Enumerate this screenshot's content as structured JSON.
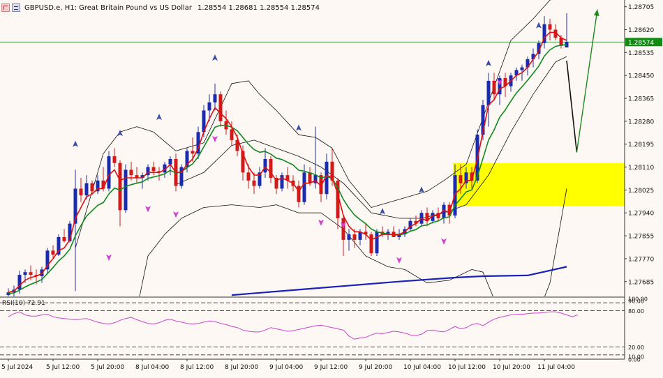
{
  "header": {
    "symbol_line": "GBPUSD.e, H1:  Great Britain Pound vs US Dollar",
    "ohlc": "1.28554 1.28681 1.28554 1.28574"
  },
  "colors": {
    "background": "#fdf8f3",
    "bull_candle": "#1a2bb0",
    "bear_candle": "#d11a1a",
    "fast_ma": "#e01010",
    "slow_ma": "#0f8a1e",
    "long_ma": "#1a22b8",
    "bollinger": "#111111",
    "zone": "#ffff00",
    "rsi_line": "#cc44cc",
    "current_price_line": "#138a13",
    "arrow_up": "#1d8a1d",
    "arrow_down": "#111111",
    "fractal_up": "#3a4fa8",
    "fractal_down": "#d43fd4"
  },
  "price_axis": {
    "ticks": [
      "1.28705",
      "1.28620",
      "1.28535",
      "1.28450",
      "1.28365",
      "1.28280",
      "1.28195",
      "1.28110",
      "1.28025",
      "1.27940",
      "1.27855",
      "1.27770",
      "1.27685"
    ],
    "current_price": "1.28574"
  },
  "time_axis": {
    "labels": [
      "5 Jul 2024",
      "5 Jul 12:00",
      "5 Jul 20:00",
      "8 Jul 04:00",
      "8 Jul 12:00",
      "8 Jul 20:00",
      "9 Jul 04:00",
      "9 Jul 12:00",
      "9 Jul 20:00",
      "10 Jul 04:00",
      "10 Jul 12:00",
      "10 Jul 20:00",
      "11 Jul 04:00"
    ]
  },
  "rsi": {
    "label": "RSI(10) 72.91",
    "ticks": [
      "100.00",
      "80.00",
      "20.00",
      "0.00"
    ],
    "top_cut": "90.00",
    "bottom_cut": "10.00"
  },
  "chart_data": {
    "type": "candlestick",
    "price_range": [
      1.2763,
      1.2873
    ],
    "current_price": 1.28574,
    "forecast_zone": [
      1.27965,
      1.28125
    ],
    "candles": [
      [
        1.27635,
        1.2766,
        1.2762,
        1.27645
      ],
      [
        1.27645,
        1.2767,
        1.2763,
        1.27655
      ],
      [
        1.27655,
        1.27725,
        1.2764,
        1.2771
      ],
      [
        1.2771,
        1.2773,
        1.2768,
        1.2772
      ],
      [
        1.2772,
        1.27745,
        1.2769,
        1.2771
      ],
      [
        1.2771,
        1.2773,
        1.27675,
        1.27705
      ],
      [
        1.27705,
        1.2774,
        1.2768,
        1.2773
      ],
      [
        1.2773,
        1.2781,
        1.27715,
        1.278
      ],
      [
        1.278,
        1.2782,
        1.2777,
        1.27785
      ],
      [
        1.27785,
        1.2786,
        1.2778,
        1.2785
      ],
      [
        1.2785,
        1.2788,
        1.2783,
        1.27835
      ],
      [
        1.27835,
        1.2791,
        1.2783,
        1.279
      ],
      [
        1.279,
        1.281,
        1.2765,
        1.2803
      ],
      [
        1.2803,
        1.2807,
        1.2798,
        1.28005
      ],
      [
        1.28005,
        1.2808,
        1.2799,
        1.2805
      ],
      [
        1.2805,
        1.2806,
        1.2801,
        1.2802
      ],
      [
        1.2802,
        1.2808,
        1.2801,
        1.2806
      ],
      [
        1.2806,
        1.2811,
        1.2802,
        1.2803
      ],
      [
        1.2803,
        1.2817,
        1.2802,
        1.2815
      ],
      [
        1.2815,
        1.2818,
        1.2811,
        1.28125
      ],
      [
        1.28125,
        1.28135,
        1.2789,
        1.2795
      ],
      [
        1.2795,
        1.2812,
        1.2794,
        1.281
      ],
      [
        1.281,
        1.2813,
        1.2806,
        1.2808
      ],
      [
        1.2808,
        1.2811,
        1.2805,
        1.2807
      ],
      [
        1.2807,
        1.2809,
        1.2803,
        1.2808
      ],
      [
        1.2808,
        1.2812,
        1.2806,
        1.2811
      ],
      [
        1.2811,
        1.2813,
        1.2808,
        1.28095
      ],
      [
        1.28095,
        1.2811,
        1.2806,
        1.2809
      ],
      [
        1.2809,
        1.2813,
        1.2807,
        1.2812
      ],
      [
        1.2812,
        1.2815,
        1.2808,
        1.2814
      ],
      [
        1.2814,
        1.2816,
        1.2802,
        1.2804
      ],
      [
        1.2804,
        1.2812,
        1.2803,
        1.2811
      ],
      [
        1.2811,
        1.2818,
        1.2809,
        1.2817
      ],
      [
        1.2817,
        1.2822,
        1.2813,
        1.2816
      ],
      [
        1.2816,
        1.2826,
        1.2814,
        1.2824
      ],
      [
        1.2824,
        1.2834,
        1.2822,
        1.2832
      ],
      [
        1.2832,
        1.2838,
        1.2828,
        1.2835
      ],
      [
        1.2835,
        1.2842,
        1.2832,
        1.2838
      ],
      [
        1.2838,
        1.2839,
        1.2826,
        1.2828
      ],
      [
        1.2828,
        1.2832,
        1.2823,
        1.2825
      ],
      [
        1.2825,
        1.2828,
        1.2819,
        1.2821
      ],
      [
        1.2821,
        1.2823,
        1.2815,
        1.2817
      ],
      [
        1.2817,
        1.2819,
        1.2806,
        1.2809
      ],
      [
        1.2809,
        1.2812,
        1.2803,
        1.2806
      ],
      [
        1.2806,
        1.2809,
        1.2801,
        1.2804
      ],
      [
        1.2804,
        1.2811,
        1.2803,
        1.2809
      ],
      [
        1.2809,
        1.2818,
        1.2807,
        1.2814
      ],
      [
        1.2814,
        1.2815,
        1.2805,
        1.2807
      ],
      [
        1.2807,
        1.2808,
        1.2801,
        1.2803
      ],
      [
        1.2803,
        1.2809,
        1.2802,
        1.2808
      ],
      [
        1.2808,
        1.2811,
        1.2803,
        1.2806
      ],
      [
        1.2806,
        1.2808,
        1.2802,
        1.2804
      ],
      [
        1.2804,
        1.2806,
        1.2796,
        1.2798
      ],
      [
        1.2798,
        1.2812,
        1.2797,
        1.2809
      ],
      [
        1.2809,
        1.2811,
        1.2804,
        1.2805
      ],
      [
        1.2805,
        1.2826,
        1.2803,
        1.2808
      ],
      [
        1.2808,
        1.2809,
        1.2798,
        1.2801
      ],
      [
        1.2801,
        1.2816,
        1.2799,
        1.2813
      ],
      [
        1.2813,
        1.2818,
        1.2804,
        1.2806
      ],
      [
        1.2806,
        1.2807,
        1.2788,
        1.2792
      ],
      [
        1.2792,
        1.2793,
        1.2778,
        1.2784
      ],
      [
        1.2784,
        1.2788,
        1.278,
        1.2786
      ],
      [
        1.2786,
        1.2788,
        1.2781,
        1.2784
      ],
      [
        1.2784,
        1.2788,
        1.2782,
        1.2787
      ],
      [
        1.2787,
        1.279,
        1.2784,
        1.2786
      ],
      [
        1.2786,
        1.2787,
        1.2778,
        1.2779
      ],
      [
        1.2779,
        1.2788,
        1.2778,
        1.2787
      ],
      [
        1.2787,
        1.2789,
        1.2785,
        1.2786
      ],
      [
        1.2786,
        1.2788,
        1.2784,
        1.2787
      ],
      [
        1.2787,
        1.2789,
        1.2785,
        1.2785
      ],
      [
        1.2785,
        1.2788,
        1.2784,
        1.2786
      ],
      [
        1.2786,
        1.2789,
        1.2785,
        1.2788
      ],
      [
        1.2788,
        1.2792,
        1.2787,
        1.2791
      ],
      [
        1.2791,
        1.2793,
        1.2789,
        1.279
      ],
      [
        1.279,
        1.2795,
        1.2789,
        1.2794
      ],
      [
        1.2794,
        1.2796,
        1.2789,
        1.2791
      ],
      [
        1.2791,
        1.2795,
        1.279,
        1.2794
      ],
      [
        1.2794,
        1.2796,
        1.2791,
        1.2792
      ],
      [
        1.2792,
        1.2798,
        1.279,
        1.2797
      ],
      [
        1.2797,
        1.2798,
        1.279,
        1.2793
      ],
      [
        1.2793,
        1.2812,
        1.2792,
        1.2808
      ],
      [
        1.2808,
        1.2812,
        1.2801,
        1.2805
      ],
      [
        1.2805,
        1.2811,
        1.2803,
        1.2809
      ],
      [
        1.2809,
        1.2811,
        1.2803,
        1.2806
      ],
      [
        1.2806,
        1.2825,
        1.2805,
        1.2823
      ],
      [
        1.2823,
        1.2836,
        1.2821,
        1.2834
      ],
      [
        1.2834,
        1.2846,
        1.2826,
        1.2843
      ],
      [
        1.2843,
        1.2846,
        1.2836,
        1.2838
      ],
      [
        1.2838,
        1.2845,
        1.2834,
        1.2844
      ],
      [
        1.2844,
        1.2846,
        1.2837,
        1.2841
      ],
      [
        1.2841,
        1.2846,
        1.2839,
        1.2845
      ],
      [
        1.2845,
        1.2848,
        1.2843,
        1.2847
      ],
      [
        1.2847,
        1.2849,
        1.2843,
        1.2848
      ],
      [
        1.2848,
        1.2852,
        1.2845,
        1.2851
      ],
      [
        1.2851,
        1.2855,
        1.2848,
        1.2853
      ],
      [
        1.2853,
        1.2858,
        1.2851,
        1.2857
      ],
      [
        1.2857,
        1.2867,
        1.2855,
        1.2864
      ],
      [
        1.2864,
        1.2866,
        1.2858,
        1.2862
      ],
      [
        1.2862,
        1.2864,
        1.2858,
        1.2859
      ],
      [
        1.2859,
        1.286,
        1.2855,
        1.2856
      ],
      [
        1.28554,
        1.28681,
        1.28554,
        1.28574
      ]
    ],
    "fast_ma": [
      1.27645,
      1.2765,
      1.2767,
      1.2769,
      1.277,
      1.27705,
      1.27715,
      1.27745,
      1.2777,
      1.278,
      1.2781,
      1.2784,
      1.2792,
      1.2796,
      1.28,
      1.2801,
      1.2803,
      1.2803,
      1.2808,
      1.281,
      1.2806,
      1.2807,
      1.2807,
      1.2807,
      1.2807,
      1.2809,
      1.2809,
      1.2809,
      1.281,
      1.2812,
      1.2809,
      1.2809,
      1.2812,
      1.2814,
      1.2818,
      1.2824,
      1.2829,
      1.2833,
      1.2831,
      1.2829,
      1.2826,
      1.2822,
      1.2816,
      1.2811,
      1.2808,
      1.2808,
      1.2811,
      1.2809,
      1.2806,
      1.2807,
      1.2806,
      1.2805,
      1.2802,
      1.2805,
      1.2805,
      1.2806,
      1.2804,
      1.2808,
      1.2807,
      1.2801,
      1.2793,
      1.2789,
      1.2787,
      1.2787,
      1.2786,
      1.2784,
      1.2785,
      1.2786,
      1.2786,
      1.2786,
      1.2786,
      1.2787,
      1.2789,
      1.279,
      1.2792,
      1.2791,
      1.2793,
      1.2793,
      1.2795,
      1.2794,
      1.2801,
      1.2803,
      1.2806,
      1.2806,
      1.2814,
      1.2824,
      1.2834,
      1.2836,
      1.284,
      1.2841,
      1.2843,
      1.2845,
      1.2846,
      1.2848,
      1.2851,
      1.2854,
      1.2859,
      1.2861,
      1.2861,
      1.2859,
      1.2858
    ],
    "slow_ma": [
      1.2764,
      1.27643,
      1.27653,
      1.27665,
      1.27675,
      1.27683,
      1.27693,
      1.27715,
      1.27737,
      1.27762,
      1.2778,
      1.27805,
      1.27855,
      1.27893,
      1.27928,
      1.27948,
      1.27968,
      1.27978,
      1.2801,
      1.28032,
      1.28025,
      1.28038,
      1.28045,
      1.2805,
      1.28055,
      1.28068,
      1.28073,
      1.28078,
      1.28085,
      1.28098,
      1.28088,
      1.28092,
      1.28108,
      1.28122,
      1.28148,
      1.28185,
      1.28222,
      1.28258,
      1.28265,
      1.28265,
      1.28258,
      1.28245,
      1.2822,
      1.28195,
      1.28175,
      1.28165,
      1.28168,
      1.28158,
      1.28143,
      1.28138,
      1.28128,
      1.28118,
      1.28098,
      1.28095,
      1.28088,
      1.28082,
      1.2807,
      1.28075,
      1.28068,
      1.28033,
      1.2799,
      1.27958,
      1.27932,
      1.27915,
      1.279,
      1.2788,
      1.2787,
      1.27865,
      1.27862,
      1.27858,
      1.27858,
      1.27862,
      1.27872,
      1.27878,
      1.27892,
      1.27895,
      1.27905,
      1.2791,
      1.27922,
      1.27925,
      1.27968,
      1.27993,
      1.28018,
      1.28025,
      1.28075,
      1.28142,
      1.2821,
      1.28248,
      1.28295,
      1.28322,
      1.28355,
      1.28385,
      1.28408,
      1.28432,
      1.28458,
      1.28485,
      1.28522,
      1.28545,
      1.28558,
      1.28562,
      1.28565
    ],
    "long_ma": [
      [
        40,
        1.27635
      ],
      [
        55,
        1.2766
      ],
      [
        70,
        1.27685
      ],
      [
        80,
        1.277
      ],
      [
        85,
        1.27705
      ],
      [
        93,
        1.27708
      ],
      [
        100,
        1.2774
      ]
    ],
    "bb_upper": [
      [
        12,
        1.2781
      ],
      [
        17,
        1.2816
      ],
      [
        20,
        1.2824
      ],
      [
        23,
        1.2826
      ],
      [
        26,
        1.2824
      ],
      [
        30,
        1.2817
      ],
      [
        35,
        1.282
      ],
      [
        40,
        1.2842
      ],
      [
        43,
        1.2843
      ],
      [
        45,
        1.2838
      ],
      [
        48,
        1.2832
      ],
      [
        52,
        1.2823
      ],
      [
        55,
        1.2822
      ],
      [
        58,
        1.2818
      ],
      [
        61,
        1.2806
      ],
      [
        65,
        1.2796
      ],
      [
        70,
        1.2799
      ],
      [
        75,
        1.2802
      ],
      [
        78,
        1.2806
      ],
      [
        82,
        1.2812
      ],
      [
        86,
        1.2835
      ],
      [
        90,
        1.2858
      ],
      [
        94,
        1.2866
      ],
      [
        97,
        1.2873
      ],
      [
        100,
        1.2874
      ]
    ],
    "bb_middle": [
      [
        30,
        1.28045
      ],
      [
        35,
        1.2809
      ],
      [
        40,
        1.2819
      ],
      [
        44,
        1.2821
      ],
      [
        48,
        1.2818
      ],
      [
        52,
        1.2815
      ],
      [
        56,
        1.2811
      ],
      [
        60,
        1.2805
      ],
      [
        65,
        1.2794
      ],
      [
        70,
        1.2792
      ],
      [
        74,
        1.2792
      ],
      [
        78,
        1.2794
      ],
      [
        82,
        1.2797
      ],
      [
        86,
        1.2808
      ],
      [
        90,
        1.2824
      ],
      [
        94,
        1.2838
      ],
      [
        98,
        1.285
      ],
      [
        100,
        1.2852
      ]
    ],
    "bb_lower": [
      [
        22,
        1.2748
      ],
      [
        25,
        1.2778
      ],
      [
        28,
        1.2786
      ],
      [
        31,
        1.2792
      ],
      [
        35,
        1.2796
      ],
      [
        40,
        1.2797
      ],
      [
        45,
        1.2796
      ],
      [
        48,
        1.2797
      ],
      [
        52,
        1.2794
      ],
      [
        56,
        1.2794
      ],
      [
        60,
        1.2788
      ],
      [
        64,
        1.2778
      ],
      [
        68,
        1.2774
      ],
      [
        71,
        1.2773
      ],
      [
        75,
        1.2768
      ],
      [
        79,
        1.2769
      ],
      [
        83,
        1.2773
      ],
      [
        85,
        1.2772
      ],
      [
        88,
        1.2757
      ],
      [
        91,
        1.2744
      ],
      [
        94,
        1.2752
      ],
      [
        97,
        1.2768
      ],
      [
        100,
        1.2803
      ]
    ],
    "fractals_up": [
      [
        12,
        1.2819
      ],
      [
        20,
        1.2823
      ],
      [
        27,
        1.2829
      ],
      [
        37,
        1.2851
      ],
      [
        52,
        1.2825
      ],
      [
        67,
        1.2794
      ],
      [
        74,
        1.2802
      ],
      [
        86,
        1.2849
      ],
      [
        95,
        1.2863
      ],
      [
        97,
        1.2874
      ]
    ],
    "fractals_down": [
      [
        18,
        1.2778
      ],
      [
        25,
        1.2796
      ],
      [
        30,
        1.2794
      ],
      [
        37,
        1.2822
      ],
      [
        56,
        1.2791
      ],
      [
        60,
        1.279
      ],
      [
        70,
        1.2777
      ],
      [
        78,
        1.2784
      ],
      [
        88,
        1.2843
      ]
    ],
    "forecast_path": [
      [
        100,
        1.28505
      ],
      [
        101.8,
        1.28165
      ],
      [
        105.5,
        1.28695
      ]
    ],
    "rsi_values": [
      70,
      75,
      78,
      73,
      71,
      71,
      73,
      74,
      70,
      68,
      67,
      66,
      65,
      66,
      67,
      64,
      61,
      59,
      58,
      60,
      64,
      67,
      69,
      65,
      62,
      59,
      58,
      60,
      64,
      66,
      63,
      61,
      59,
      58,
      59,
      61,
      63,
      62,
      59,
      57,
      54,
      52,
      48,
      46,
      45,
      45,
      48,
      52,
      50,
      48,
      46,
      47,
      49,
      51,
      53,
      55,
      56,
      54,
      52,
      50,
      48,
      38,
      33,
      35,
      36,
      40,
      43,
      42,
      44,
      46,
      45,
      43,
      40,
      39,
      41,
      47,
      48,
      46,
      45,
      49,
      54,
      50,
      52,
      57,
      59,
      55,
      61,
      66,
      69,
      71,
      73,
      74,
      74,
      75,
      76,
      76,
      77,
      78,
      78,
      76,
      73,
      70,
      73
    ]
  }
}
